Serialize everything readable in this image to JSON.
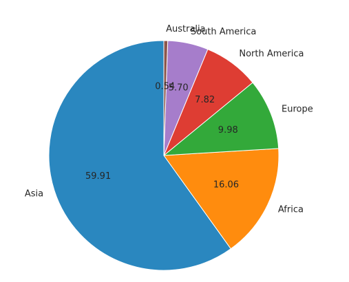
{
  "chart_data": {
    "type": "pie",
    "start_angle_deg": 90,
    "direction": "counterclockwise",
    "slices": [
      {
        "label": "Asia",
        "value": 59.91,
        "display": "59.91",
        "color": "#2a87bf"
      },
      {
        "label": "Africa",
        "value": 16.06,
        "display": "16.06",
        "color": "#ff8c0e"
      },
      {
        "label": "Europe",
        "value": 9.98,
        "display": "9.98",
        "color": "#33a93a"
      },
      {
        "label": "North America",
        "value": 7.82,
        "display": "7.82",
        "color": "#de3d33"
      },
      {
        "label": "South America",
        "value": 5.7,
        "display": "5.70",
        "color": "#a67dcb"
      },
      {
        "label": "Australia",
        "value": 0.54,
        "display": "0.54",
        "color": "#8c564b"
      }
    ]
  }
}
